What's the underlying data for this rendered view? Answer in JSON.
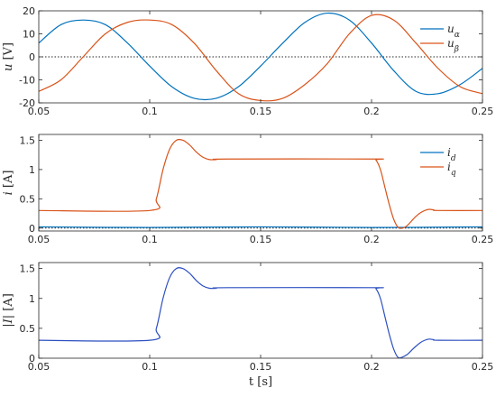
{
  "chart_data": [
    {
      "type": "line",
      "ylabel_var": "u",
      "ylabel_unit": "[V]",
      "xlim": [
        0.05,
        0.25
      ],
      "ylim": [
        -20,
        20
      ],
      "xticks": [
        0.05,
        0.1,
        0.15,
        0.2,
        0.25
      ],
      "xtick_labels": [
        "0.05",
        "0.1",
        "0.15",
        "0.2",
        "0.25"
      ],
      "yticks": [
        -20,
        -10,
        0,
        10,
        20
      ],
      "ytick_labels": [
        "-20",
        "-10",
        "0",
        "10",
        "20"
      ],
      "reference_line": {
        "y": 0,
        "style": "dotted"
      },
      "legend_position": "top-right",
      "series": [
        {
          "name": "u",
          "subscript": "α",
          "color": "#0072BD",
          "x": [
            0.05,
            0.06,
            0.07,
            0.08,
            0.09,
            0.1,
            0.11,
            0.12,
            0.13,
            0.14,
            0.15,
            0.16,
            0.17,
            0.18,
            0.19,
            0.2,
            0.21,
            0.22,
            0.23,
            0.24,
            0.25
          ],
          "y": [
            6,
            14,
            16,
            14,
            6,
            -4,
            -13,
            -18,
            -18,
            -13,
            -4,
            6,
            15,
            19,
            16,
            6,
            -6,
            -15,
            -16,
            -12,
            -5
          ]
        },
        {
          "name": "u",
          "subscript": "β",
          "color": "#D95319",
          "x": [
            0.05,
            0.06,
            0.07,
            0.08,
            0.09,
            0.1,
            0.11,
            0.12,
            0.13,
            0.14,
            0.15,
            0.16,
            0.17,
            0.18,
            0.19,
            0.2,
            0.21,
            0.22,
            0.23,
            0.24,
            0.25
          ],
          "y": [
            -15,
            -10,
            0,
            10,
            15,
            16,
            14,
            6,
            -6,
            -16,
            -19,
            -18,
            -12,
            -3,
            10,
            18,
            16,
            6,
            -5,
            -13,
            -16
          ]
        }
      ]
    },
    {
      "type": "line",
      "ylabel_var": "i",
      "ylabel_unit": "[A]",
      "xlim": [
        0.05,
        0.25
      ],
      "ylim": [
        -0.05,
        1.6
      ],
      "xticks": [
        0.05,
        0.1,
        0.15,
        0.2,
        0.25
      ],
      "xtick_labels": [
        "0.05",
        "0.1",
        "0.15",
        "0.2",
        "0.25"
      ],
      "yticks": [
        0,
        0.5,
        1,
        1.5
      ],
      "ytick_labels": [
        "0",
        "0.5",
        "1",
        "1.5"
      ],
      "reference_line": {
        "y": 0,
        "style": "dotted"
      },
      "legend_position": "top-right",
      "series": [
        {
          "name": "i",
          "subscript": "d",
          "color": "#0072BD",
          "x": [
            0.05,
            0.1,
            0.15,
            0.2,
            0.25
          ],
          "y": [
            0.02,
            0.01,
            0.02,
            0.01,
            0.02
          ]
        },
        {
          "name": "i",
          "subscript": "q",
          "color": "#D95319",
          "x": [
            0.05,
            0.1,
            0.103,
            0.106,
            0.109,
            0.112,
            0.115,
            0.118,
            0.121,
            0.124,
            0.127,
            0.13,
            0.135,
            0.2,
            0.202,
            0.204,
            0.206,
            0.208,
            0.21,
            0.212,
            0.214,
            0.216,
            0.218,
            0.22,
            0.222,
            0.224,
            0.226,
            0.228,
            0.23,
            0.25
          ],
          "y": [
            0.3,
            0.3,
            0.5,
            1.0,
            1.35,
            1.5,
            1.5,
            1.42,
            1.3,
            1.21,
            1.17,
            1.17,
            1.18,
            1.18,
            1.16,
            1.0,
            0.7,
            0.4,
            0.15,
            0.01,
            0.0,
            0.04,
            0.12,
            0.2,
            0.26,
            0.3,
            0.32,
            0.31,
            0.3,
            0.3
          ]
        }
      ]
    },
    {
      "type": "line",
      "ylabel_var": "|I|",
      "ylabel_unit": "[A]",
      "xlabel_var": "t",
      "xlabel_unit": "[s]",
      "xlim": [
        0.05,
        0.25
      ],
      "ylim": [
        0,
        1.6
      ],
      "xticks": [
        0.05,
        0.1,
        0.15,
        0.2,
        0.25
      ],
      "xtick_labels": [
        "0.05",
        "0.1",
        "0.15",
        "0.2",
        "0.25"
      ],
      "yticks": [
        0,
        0.5,
        1,
        1.5
      ],
      "ytick_labels": [
        "0",
        "0.5",
        "1",
        "1.5"
      ],
      "series": [
        {
          "name": "",
          "color": "#2B4FC0",
          "x": [
            0.05,
            0.1,
            0.103,
            0.106,
            0.109,
            0.112,
            0.115,
            0.118,
            0.121,
            0.124,
            0.127,
            0.13,
            0.135,
            0.2,
            0.202,
            0.204,
            0.206,
            0.208,
            0.21,
            0.212,
            0.214,
            0.216,
            0.218,
            0.22,
            0.222,
            0.224,
            0.226,
            0.228,
            0.23,
            0.25
          ],
          "y": [
            0.3,
            0.3,
            0.5,
            1.0,
            1.35,
            1.5,
            1.5,
            1.42,
            1.3,
            1.21,
            1.17,
            1.17,
            1.18,
            1.18,
            1.16,
            1.0,
            0.7,
            0.4,
            0.15,
            0.01,
            0.02,
            0.06,
            0.13,
            0.2,
            0.26,
            0.3,
            0.32,
            0.31,
            0.3,
            0.3
          ]
        }
      ]
    }
  ]
}
